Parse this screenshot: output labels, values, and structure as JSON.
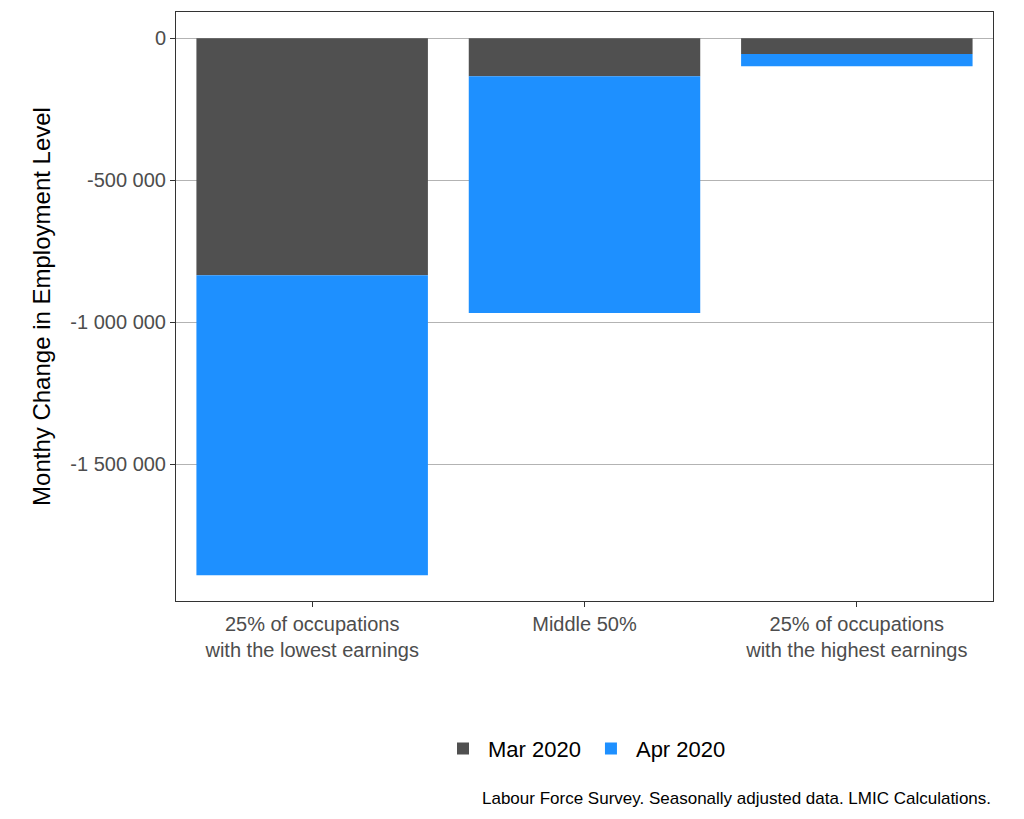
{
  "chart_data": {
    "type": "bar",
    "stacked": true,
    "categories": [
      "25% of occupations\nwith the lowest earnings",
      "Middle 50%",
      "25% of occupations\nwith the highest earnings"
    ],
    "series": [
      {
        "name": "Mar 2020",
        "color": "#505050",
        "values": [
          -835000,
          -134000,
          -56000
        ]
      },
      {
        "name": "Apr 2020",
        "color": "#1e90ff",
        "values": [
          -1056000,
          -834000,
          -43000
        ]
      }
    ],
    "y_label": "Monthy Change in Employment Level",
    "annotations": [
      "Labour Force Survey. Seasonally adjusted data. LMIC Calculations."
    ],
    "ylim": [
      -1982000,
      92000
    ],
    "yticks": [
      {
        "value": -1500000,
        "label": "-1 500 000"
      },
      {
        "value": -1000000,
        "label": "-1 000 000"
      },
      {
        "value": -500000,
        "label": "-500 000"
      },
      0
    ],
    "grid": true,
    "legend": "bottom"
  }
}
